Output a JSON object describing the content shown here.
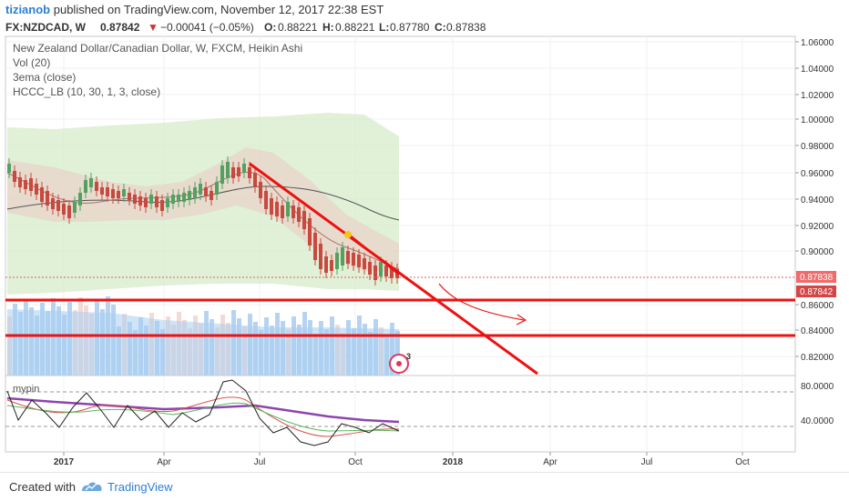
{
  "header": {
    "username": "tizianob",
    "published_text": "published on TradingView.com, November 12, 2017 22:38 EST"
  },
  "symbol_bar": {
    "symbol": "FX:NZDCAD, W",
    "last": "0.87842",
    "change": "−0.00041 (−0.05%)",
    "o_label": "O:",
    "o": "0.88221",
    "h_label": "H:",
    "h": "0.88221",
    "l_label": "L:",
    "l": "0.87780",
    "c_label": "C:",
    "c": "0.87838"
  },
  "legend": {
    "line1": "New Zealand Dollar/Canadian Dollar, W, FXCM, Heikin Ashi",
    "line2": "Vol (20)",
    "line3": "3ema (close)",
    "line4": "HCCC_LB (10, 30, 1, 3, close)"
  },
  "price_axis": {
    "labels": [
      "1.06000",
      "1.04000",
      "1.02000",
      "1.00000",
      "0.98000",
      "0.96000",
      "0.94000",
      "0.92000",
      "0.90000",
      "0.86000",
      "0.84000",
      "0.82000"
    ],
    "current_label_1": "0.87838",
    "current_label_2": "0.87842"
  },
  "indicator": {
    "name": "mypin",
    "labels": [
      "80.0000",
      "40.0000"
    ]
  },
  "time_axis": {
    "labels": [
      "2017",
      "Apr",
      "Jul",
      "Oct",
      "2018",
      "Apr",
      "Jul",
      "Oct"
    ]
  },
  "badge_number": "3",
  "footer": {
    "created_with": "Created with",
    "brand": "TradingView"
  },
  "colors": {
    "up": "#53a160",
    "down": "#c8493f",
    "trendline": "#ee1111",
    "band_green": "#d6eccb",
    "volume": "#a9cdf0",
    "avg_line": "#8e44ad"
  }
}
